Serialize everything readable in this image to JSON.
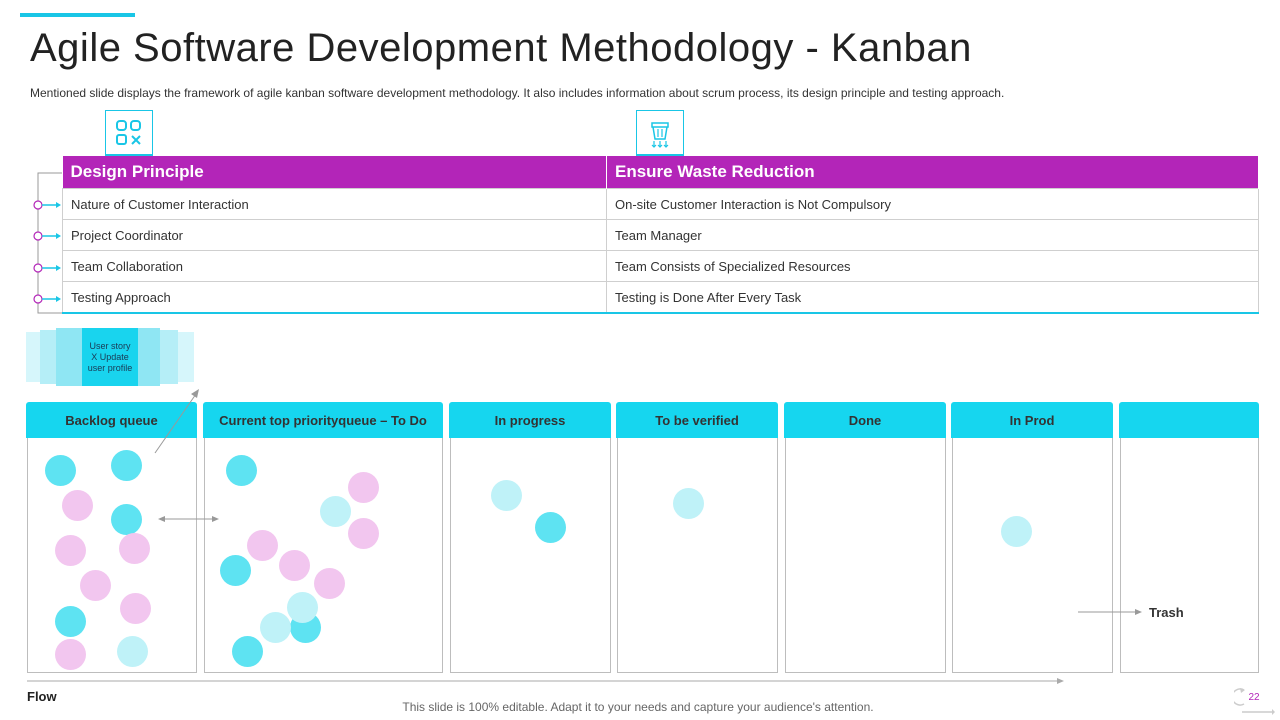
{
  "title": "Agile Software Development Methodology - Kanban",
  "subtitle": "Mentioned slide displays the framework of agile kanban software development methodology. It also includes information about scrum process, its design principle and testing approach.",
  "table": {
    "headers": [
      "Design Principle",
      "Ensure Waste Reduction"
    ],
    "rows": [
      [
        "Nature of Customer Interaction",
        "On-site Customer Interaction is Not Compulsory"
      ],
      [
        "Project Coordinator",
        "Team Manager"
      ],
      [
        "Team Collaboration",
        "Team Consists of Specialized Resources"
      ],
      [
        "Testing Approach",
        "Testing is Done After Every Task"
      ]
    ]
  },
  "user_story": {
    "line1": "User story",
    "line2": "X Update",
    "line3": "user profile"
  },
  "columns": [
    "Backlog queue",
    "Current top priorityqueue – To Do",
    "In progress",
    "To be verified",
    "Done",
    "In Prod",
    ""
  ],
  "flow_label": "Flow",
  "trash_label": "Trash",
  "footer": "This slide is 100% editable. Adapt it to your needs and capture your audience's attention.",
  "page_number": "22",
  "colors": {
    "accent": "#19c6e6",
    "header": "#b325b8",
    "column_header": "#16d6ef",
    "dot_cyan": "#5ee3f2",
    "dot_pink": "#f2c6ef",
    "dot_light": "#bff2f8"
  },
  "icons": [
    "grid-shapes-icon",
    "trash-bin-icon",
    "refresh-icon"
  ]
}
